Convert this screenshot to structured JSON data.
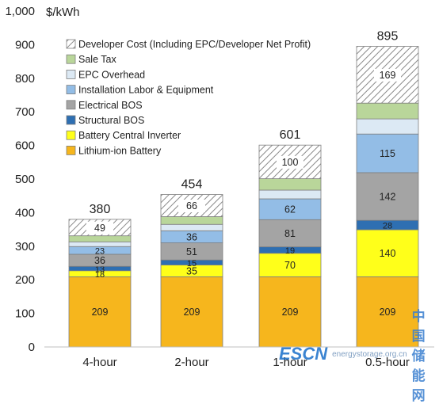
{
  "chart_data": {
    "type": "bar",
    "stacked": true,
    "ylabel": "$/kWh",
    "ylim": [
      0,
      1000
    ],
    "yticks": [
      "0",
      "100",
      "200",
      "300",
      "400",
      "500",
      "600",
      "700",
      "800",
      "900",
      "1,000"
    ],
    "ytick_values": [
      0,
      100,
      200,
      300,
      400,
      500,
      600,
      700,
      800,
      900,
      1000
    ],
    "grid": false,
    "legend_position": "top-left",
    "categories": [
      "4-hour",
      "2-hour",
      "1-hour",
      "0.5-hour"
    ],
    "totals": [
      380,
      454,
      601,
      895
    ],
    "total_labels": [
      "380",
      "454",
      "601",
      "895"
    ],
    "series": [
      {
        "name": "Lithium-ion Battery",
        "color": "#f6b61d",
        "values": [
          209,
          209,
          209,
          209
        ],
        "labels": [
          "209",
          "209",
          "209",
          "209"
        ]
      },
      {
        "name": "Battery Central Inverter",
        "color": "#ffff1a",
        "values": [
          18,
          35,
          70,
          140
        ],
        "labels": [
          "18",
          "35",
          "70",
          "140"
        ]
      },
      {
        "name": "Structural BOS",
        "color": "#2e6fb2",
        "values": [
          13,
          15,
          19,
          28
        ],
        "labels": [
          "13",
          "15",
          "19",
          "28"
        ]
      },
      {
        "name": "Electrical BOS",
        "color": "#a4a4a4",
        "values": [
          36,
          51,
          81,
          142
        ],
        "labels": [
          "36",
          "51",
          "81",
          "142"
        ]
      },
      {
        "name": "Installation Labor & Equipment",
        "color": "#93bde6",
        "values": [
          23,
          36,
          62,
          115
        ],
        "labels": [
          "23",
          "36",
          "62",
          "115"
        ]
      },
      {
        "name": "EPC Overhead",
        "color": "#dce9f4",
        "values": [
          14,
          19,
          26,
          45
        ],
        "labels": [
          "",
          "",
          "",
          ""
        ]
      },
      {
        "name": "Sale Tax",
        "color": "#b9d69a",
        "values": [
          18,
          23,
          34,
          47
        ],
        "labels": [
          "",
          "",
          "",
          ""
        ]
      },
      {
        "name": "Developer Cost (Including EPC/Developer Net Profit)",
        "color": "#ffffff",
        "hatched": true,
        "values": [
          49,
          66,
          100,
          169
        ],
        "labels": [
          "49",
          "66",
          "100",
          "169"
        ]
      }
    ]
  },
  "watermark": {
    "logo": "ESCN",
    "url": "energystorage.org.cn",
    "cn": "中国储能网"
  }
}
